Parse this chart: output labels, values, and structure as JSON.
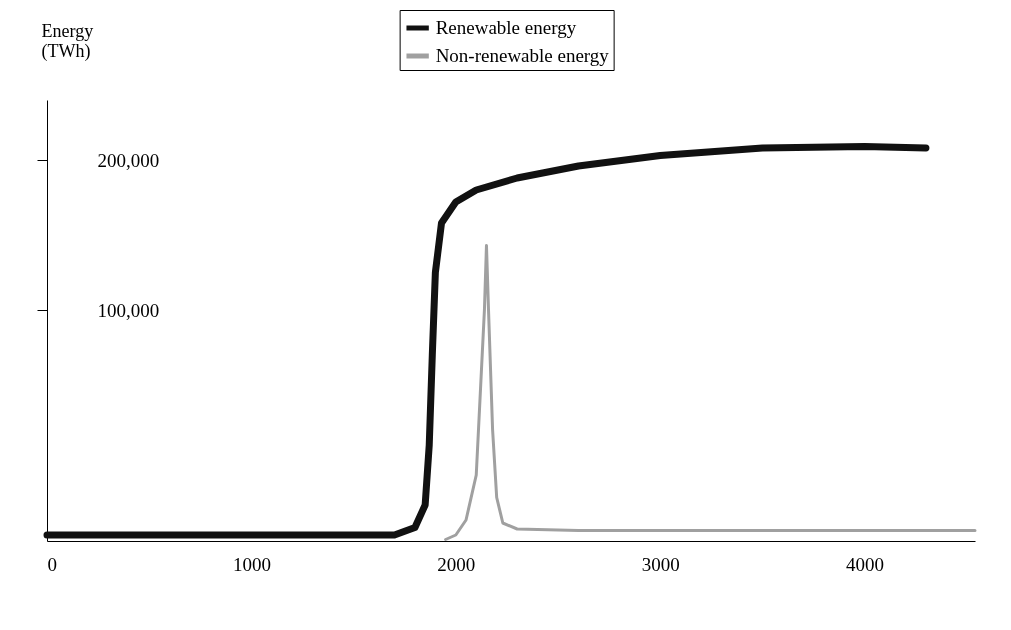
{
  "chart_data": {
    "type": "line",
    "ylabel": "Energy (TWh)",
    "xlim": [
      0,
      4540
    ],
    "xticks": [
      0,
      1000,
      2000,
      3000,
      4000
    ],
    "ylim": [
      -54000,
      240000
    ],
    "yticks": [
      {
        "value": 100000,
        "label": "100,000"
      },
      {
        "value": 200000,
        "label": "200,000"
      }
    ],
    "series": [
      {
        "name": "Renewable energy",
        "color": "#111111",
        "x": [
          0,
          1000,
          1700,
          1800,
          1850,
          1870,
          1885,
          1900,
          1930,
          2000,
          2100,
          2300,
          2600,
          3000,
          3500,
          4000,
          4300
        ],
        "values": [
          -50000,
          -50000,
          -50000,
          -45000,
          -30000,
          10000,
          70000,
          125000,
          158000,
          172000,
          180000,
          188000,
          196000,
          203000,
          208000,
          209000,
          208000
        ]
      },
      {
        "name": "Non-renewable energy",
        "color": "#a0a0a0",
        "x": [
          1950,
          2000,
          2050,
          2100,
          2140,
          2150,
          2160,
          2180,
          2200,
          2230,
          2300,
          2600,
          4540
        ],
        "values": [
          -53000,
          -50000,
          -40000,
          -10000,
          100000,
          143000,
          100000,
          20000,
          -25000,
          -42000,
          -46000,
          -47000,
          -47000
        ]
      }
    ],
    "legend": "top",
    "grid": false
  }
}
